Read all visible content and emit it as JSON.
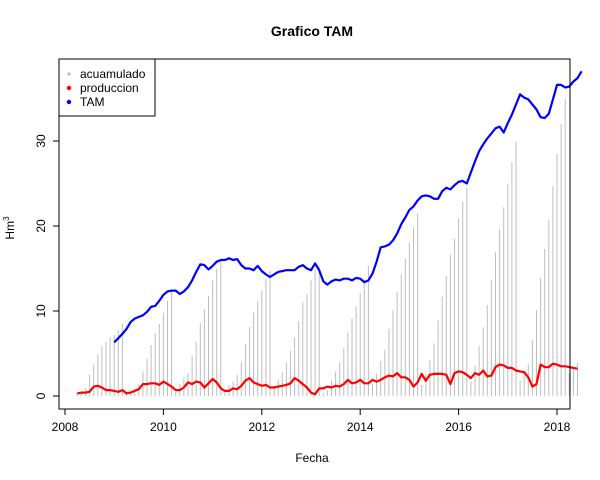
{
  "chart_data": {
    "type": "line",
    "title": "Grafico TAM",
    "xlabel": "Fecha",
    "ylabel": "Hm",
    "ylabel_superscript": "3",
    "xlim": [
      2008.0,
      2018.2
    ],
    "ylim": [
      0,
      38
    ],
    "x_ticks": [
      2008,
      2010,
      2012,
      2014,
      2016,
      2018
    ],
    "x_tick_labels": [
      "2008",
      "2010",
      "2012",
      "2014",
      "2016",
      "2018"
    ],
    "y_ticks": [
      0,
      10,
      20,
      30
    ],
    "y_tick_labels": [
      "0",
      "10",
      "20",
      "30"
    ],
    "legend": {
      "position": "top-left",
      "entries": [
        {
          "label": "acuamulado",
          "color": "#BEBEBE",
          "symbol": "dot"
        },
        {
          "label": "produccion",
          "color": "#FF0000",
          "symbol": "dot"
        },
        {
          "label": "TAM",
          "color": "#0000FF",
          "symbol": "dot"
        }
      ]
    },
    "series": [
      {
        "name": "acuamulado",
        "color": "#BEBEBE",
        "style": "vertical-lines",
        "start": 2008.25,
        "step": 0.08333,
        "values": [
          0.3,
          0.5,
          0.9,
          2.5,
          3.7,
          4.9,
          5.9,
          6.4,
          6.9,
          7.2,
          7.8,
          8.5,
          0.3,
          0.5,
          0.9,
          1.4,
          2.9,
          4.4,
          6.0,
          7.4,
          8.5,
          9.8,
          11.2,
          12.3,
          0.5,
          1.4,
          2.2,
          2.7,
          4.7,
          6.4,
          8.6,
          10.2,
          11.8,
          13.6,
          15.0,
          16.0,
          0.6,
          1.3,
          1.7,
          2.5,
          4.0,
          6.1,
          8.1,
          9.8,
          11.2,
          12.4,
          13.8,
          14.8,
          1.2,
          1.9,
          2.8,
          3.9,
          5.3,
          6.9,
          8.8,
          11.0,
          12.0,
          13.6,
          14.9,
          15.2,
          0.3,
          0.7,
          1.8,
          2.9,
          4.0,
          5.6,
          7.5,
          9.1,
          10.6,
          12.1,
          13.7,
          15.3,
          1.4,
          2.6,
          4.1,
          5.4,
          7.9,
          10.1,
          12.3,
          14.3,
          16.2,
          18.0,
          19.8,
          21.5,
          1.3,
          2.6,
          4.2,
          6.2,
          8.9,
          11.7,
          14.1,
          16.6,
          18.5,
          20.9,
          22.9,
          24.5,
          1.7,
          3.6,
          5.9,
          8.1,
          10.7,
          13.6,
          16.9,
          19.6,
          22.2,
          25.0,
          27.5,
          29.9,
          1.8,
          2.9,
          3.7,
          6.6,
          10.1,
          13.9,
          17.3,
          20.7,
          24.7,
          28.5,
          32.0,
          35.0,
          2.7,
          3.4,
          3.9
        ]
      },
      {
        "name": "produccion",
        "color": "#FF0000",
        "style": "line",
        "start": 2008.25,
        "step": 0.08333,
        "values": [
          0.3,
          0.4,
          0.4,
          0.5,
          1.1,
          1.2,
          1.0,
          0.7,
          0.7,
          0.6,
          0.5,
          0.7,
          0.3,
          0.4,
          0.6,
          0.8,
          1.4,
          1.4,
          1.5,
          1.5,
          1.3,
          1.7,
          1.4,
          1.1,
          0.7,
          0.7,
          1.0,
          1.6,
          1.4,
          1.7,
          1.6,
          1.0,
          1.5,
          2.0,
          1.6,
          0.9,
          0.6,
          0.6,
          0.9,
          0.8,
          1.2,
          1.8,
          2.1,
          1.6,
          1.4,
          1.2,
          1.3,
          1.0,
          1.0,
          1.1,
          1.2,
          1.3,
          1.5,
          2.1,
          1.8,
          1.4,
          1.0,
          0.4,
          0.2,
          0.9,
          0.9,
          1.1,
          1.0,
          1.2,
          1.1,
          1.4,
          1.9,
          1.5,
          1.6,
          1.9,
          1.5,
          1.5,
          1.9,
          1.7,
          1.9,
          2.2,
          2.4,
          2.3,
          2.7,
          2.2,
          2.2,
          1.9,
          1.1,
          1.6,
          2.6,
          1.8,
          2.5,
          2.6,
          2.6,
          2.6,
          2.5,
          1.4,
          2.7,
          2.9,
          2.8,
          2.5,
          2.1,
          2.7,
          2.5,
          3.0,
          2.3,
          2.4,
          3.4,
          3.7,
          3.6,
          3.3,
          3.3,
          3.0,
          2.9,
          2.8,
          2.2,
          1.1,
          1.4,
          3.7,
          3.4,
          3.4,
          3.8,
          3.7,
          3.5,
          3.5,
          3.4,
          3.3,
          3.2
        ]
      },
      {
        "name": "TAM",
        "color": "#0000FF",
        "style": "line",
        "start": 2009.0,
        "step": 0.08333,
        "values": [
          6.3,
          6.8,
          7.3,
          7.9,
          8.7,
          9.1,
          9.3,
          9.5,
          9.9,
          10.5,
          10.6,
          11.2,
          11.9,
          12.3,
          12.4,
          12.4,
          12.0,
          12.3,
          12.8,
          13.6,
          14.6,
          15.5,
          15.4,
          14.9,
          15.3,
          15.8,
          16.0,
          16.0,
          16.2,
          16.0,
          16.1,
          15.4,
          15.0,
          15.0,
          14.8,
          15.3,
          14.7,
          14.3,
          14.0,
          14.3,
          14.6,
          14.7,
          14.8,
          14.8,
          14.8,
          15.2,
          15.4,
          15.0,
          14.8,
          15.6,
          14.8,
          13.5,
          13.1,
          13.5,
          13.7,
          13.6,
          13.8,
          13.8,
          13.6,
          13.9,
          13.8,
          13.4,
          13.6,
          14.4,
          15.8,
          17.5,
          17.6,
          17.8,
          18.3,
          19.1,
          20.2,
          21.0,
          21.9,
          22.3,
          23.0,
          23.5,
          23.6,
          23.5,
          23.2,
          23.2,
          24.1,
          24.5,
          24.3,
          24.8,
          25.2,
          25.3,
          25.0,
          26.3,
          27.6,
          28.8,
          29.6,
          30.3,
          30.9,
          31.5,
          31.7,
          31.0,
          32.1,
          33.1,
          34.3,
          35.5,
          35.1,
          34.9,
          34.3,
          33.7,
          32.8,
          32.7,
          33.2,
          34.9,
          36.6,
          36.6,
          36.3,
          36.4,
          37.0,
          37.4,
          38.2
        ]
      }
    ]
  }
}
